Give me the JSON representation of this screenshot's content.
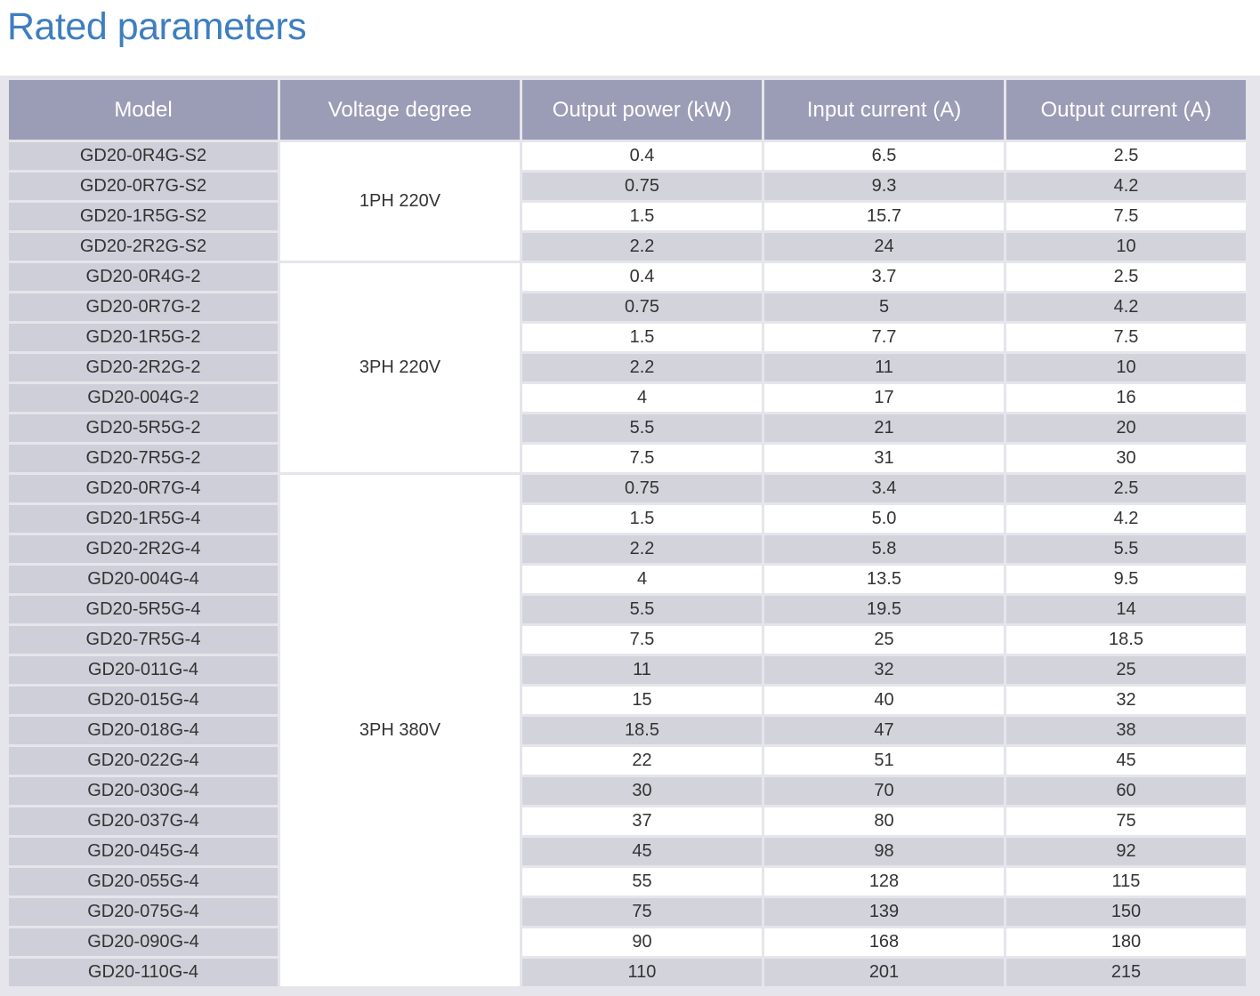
{
  "title": "Rated parameters",
  "table": {
    "headers": [
      "Model",
      "Voltage degree",
      "Output power (kW)",
      "Input current (A)",
      "Output current (A)"
    ],
    "groups": [
      {
        "voltage": "1PH 220V",
        "rows": [
          [
            "GD20-0R4G-S2",
            "0.4",
            "6.5",
            "2.5"
          ],
          [
            "GD20-0R7G-S2",
            "0.75",
            "9.3",
            "4.2"
          ],
          [
            "GD20-1R5G-S2",
            "1.5",
            "15.7",
            "7.5"
          ],
          [
            "GD20-2R2G-S2",
            "2.2",
            "24",
            "10"
          ]
        ]
      },
      {
        "voltage": "3PH 220V",
        "rows": [
          [
            "GD20-0R4G-2",
            "0.4",
            "3.7",
            "2.5"
          ],
          [
            "GD20-0R7G-2",
            "0.75",
            "5",
            "4.2"
          ],
          [
            "GD20-1R5G-2",
            "1.5",
            "7.7",
            "7.5"
          ],
          [
            "GD20-2R2G-2",
            "2.2",
            "11",
            "10"
          ],
          [
            "GD20-004G-2",
            "4",
            "17",
            "16"
          ],
          [
            "GD20-5R5G-2",
            "5.5",
            "21",
            "20"
          ],
          [
            "GD20-7R5G-2",
            "7.5",
            "31",
            "30"
          ]
        ]
      },
      {
        "voltage": "3PH 380V",
        "rows": [
          [
            "GD20-0R7G-4",
            "0.75",
            "3.4",
            "2.5"
          ],
          [
            "GD20-1R5G-4",
            "1.5",
            "5.0",
            "4.2"
          ],
          [
            "GD20-2R2G-4",
            "2.2",
            "5.8",
            "5.5"
          ],
          [
            "GD20-004G-4",
            "4",
            "13.5",
            "9.5"
          ],
          [
            "GD20-5R5G-4",
            "5.5",
            "19.5",
            "14"
          ],
          [
            "GD20-7R5G-4",
            "7.5",
            "25",
            "18.5"
          ],
          [
            "GD20-011G-4",
            "11",
            "32",
            "25"
          ],
          [
            "GD20-015G-4",
            "15",
            "40",
            "32"
          ],
          [
            "GD20-018G-4",
            "18.5",
            "47",
            "38"
          ],
          [
            "GD20-022G-4",
            "22",
            "51",
            "45"
          ],
          [
            "GD20-030G-4",
            "30",
            "70",
            "60"
          ],
          [
            "GD20-037G-4",
            "37",
            "80",
            "75"
          ],
          [
            "GD20-045G-4",
            "45",
            "98",
            "92"
          ],
          [
            "GD20-055G-4",
            "55",
            "128",
            "115"
          ],
          [
            "GD20-075G-4",
            "75",
            "139",
            "150"
          ],
          [
            "GD20-090G-4",
            "90",
            "168",
            "180"
          ],
          [
            "GD20-110G-4",
            "110",
            "201",
            "215"
          ]
        ]
      }
    ]
  }
}
